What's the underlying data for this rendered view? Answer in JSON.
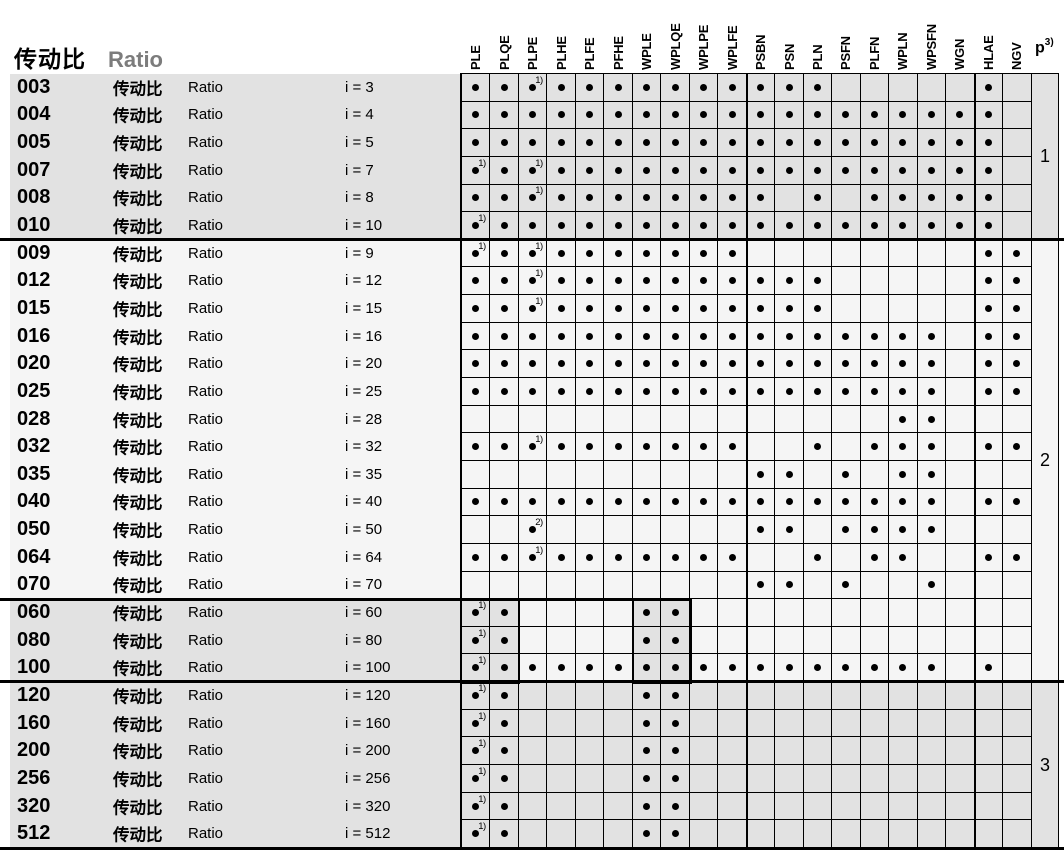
{
  "header": {
    "title_cjk": "传动比",
    "title_en": "Ratio"
  },
  "p_header": {
    "label": "p",
    "sup": "3)"
  },
  "columns": [
    "PLE",
    "PLQE",
    "PLPE",
    "PLHE",
    "PLFE",
    "PFHE",
    "WPLE",
    "WPLQE",
    "WPLPE",
    "WPLFE",
    "PSBN",
    "PSN",
    "PLN",
    "PSFN",
    "PLFN",
    "WPLN",
    "WPSFN",
    "WGN",
    "HLAE",
    "NGV"
  ],
  "sup_map": {
    "d1": "1)",
    "d2": "2)"
  },
  "colors": {
    "row_gray": "#e2e2e2",
    "row_light": "#f5f5f5",
    "border": "#000000",
    "header_en_gray": "#7c7c7c"
  },
  "groups": [
    {
      "label": "1",
      "span": 6,
      "shade": "gray"
    },
    {
      "label": "2",
      "span": 16,
      "shade": "light"
    },
    {
      "label": "3",
      "span": 6,
      "shade": "gray"
    }
  ],
  "highlight_cols": [
    0,
    1,
    6,
    7
  ],
  "rows": [
    {
      "code": "003",
      "cjk": "传动比",
      "en": "Ratio",
      "ratio": "i = 3",
      "label_shade": "gray",
      "cell_shade": "gray",
      "highlight": false,
      "cells": [
        "d",
        "d",
        "d1",
        "d",
        "d",
        "d",
        "d",
        "d",
        "d",
        "d",
        "d",
        "d",
        "d",
        "",
        "",
        "",
        "",
        "",
        "d",
        ""
      ]
    },
    {
      "code": "004",
      "cjk": "传动比",
      "en": "Ratio",
      "ratio": "i = 4",
      "label_shade": "gray",
      "cell_shade": "gray",
      "highlight": false,
      "cells": [
        "d",
        "d",
        "d",
        "d",
        "d",
        "d",
        "d",
        "d",
        "d",
        "d",
        "d",
        "d",
        "d",
        "d",
        "d",
        "d",
        "d",
        "d",
        "d",
        ""
      ]
    },
    {
      "code": "005",
      "cjk": "传动比",
      "en": "Ratio",
      "ratio": "i = 5",
      "label_shade": "gray",
      "cell_shade": "gray",
      "highlight": false,
      "cells": [
        "d",
        "d",
        "d",
        "d",
        "d",
        "d",
        "d",
        "d",
        "d",
        "d",
        "d",
        "d",
        "d",
        "d",
        "d",
        "d",
        "d",
        "d",
        "d",
        ""
      ]
    },
    {
      "code": "007",
      "cjk": "传动比",
      "en": "Ratio",
      "ratio": "i = 7",
      "label_shade": "gray",
      "cell_shade": "gray",
      "highlight": false,
      "cells": [
        "d1",
        "d",
        "d1",
        "d",
        "d",
        "d",
        "d",
        "d",
        "d",
        "d",
        "d",
        "d",
        "d",
        "d",
        "d",
        "d",
        "d",
        "d",
        "d",
        ""
      ]
    },
    {
      "code": "008",
      "cjk": "传动比",
      "en": "Ratio",
      "ratio": "i = 8",
      "label_shade": "gray",
      "cell_shade": "gray",
      "highlight": false,
      "cells": [
        "d",
        "d",
        "d1",
        "d",
        "d",
        "d",
        "d",
        "d",
        "d",
        "d",
        "d",
        "",
        "d",
        "",
        "d",
        "d",
        "d",
        "d",
        "d",
        ""
      ]
    },
    {
      "code": "010",
      "cjk": "传动比",
      "en": "Ratio",
      "ratio": "i = 10",
      "label_shade": "gray",
      "cell_shade": "gray",
      "highlight": false,
      "cells": [
        "d1",
        "d",
        "d",
        "d",
        "d",
        "d",
        "d",
        "d",
        "d",
        "d",
        "d",
        "d",
        "d",
        "d",
        "d",
        "d",
        "d",
        "d",
        "d",
        ""
      ]
    },
    {
      "code": "009",
      "cjk": "传动比",
      "en": "Ratio",
      "ratio": "i = 9",
      "label_shade": "light",
      "cell_shade": "light",
      "highlight": false,
      "cells": [
        "d1",
        "d",
        "d1",
        "d",
        "d",
        "d",
        "d",
        "d",
        "d",
        "d",
        "",
        "",
        "",
        "",
        "",
        "",
        "",
        "",
        "d",
        "d"
      ]
    },
    {
      "code": "012",
      "cjk": "传动比",
      "en": "Ratio",
      "ratio": "i = 12",
      "label_shade": "light",
      "cell_shade": "light",
      "highlight": false,
      "cells": [
        "d",
        "d",
        "d1",
        "d",
        "d",
        "d",
        "d",
        "d",
        "d",
        "d",
        "d",
        "d",
        "d",
        "",
        "",
        "",
        "",
        "",
        "d",
        "d"
      ]
    },
    {
      "code": "015",
      "cjk": "传动比",
      "en": "Ratio",
      "ratio": "i = 15",
      "label_shade": "light",
      "cell_shade": "light",
      "highlight": false,
      "cells": [
        "d",
        "d",
        "d1",
        "d",
        "d",
        "d",
        "d",
        "d",
        "d",
        "d",
        "d",
        "d",
        "d",
        "",
        "",
        "",
        "",
        "",
        "d",
        "d"
      ]
    },
    {
      "code": "016",
      "cjk": "传动比",
      "en": "Ratio",
      "ratio": "i = 16",
      "label_shade": "light",
      "cell_shade": "light",
      "highlight": false,
      "cells": [
        "d",
        "d",
        "d",
        "d",
        "d",
        "d",
        "d",
        "d",
        "d",
        "d",
        "d",
        "d",
        "d",
        "d",
        "d",
        "d",
        "d",
        "",
        "d",
        "d"
      ]
    },
    {
      "code": "020",
      "cjk": "传动比",
      "en": "Ratio",
      "ratio": "i = 20",
      "label_shade": "light",
      "cell_shade": "light",
      "highlight": false,
      "cells": [
        "d",
        "d",
        "d",
        "d",
        "d",
        "d",
        "d",
        "d",
        "d",
        "d",
        "d",
        "d",
        "d",
        "d",
        "d",
        "d",
        "d",
        "",
        "d",
        "d"
      ]
    },
    {
      "code": "025",
      "cjk": "传动比",
      "en": "Ratio",
      "ratio": "i = 25",
      "label_shade": "light",
      "cell_shade": "light",
      "highlight": false,
      "cells": [
        "d",
        "d",
        "d",
        "d",
        "d",
        "d",
        "d",
        "d",
        "d",
        "d",
        "d",
        "d",
        "d",
        "d",
        "d",
        "d",
        "d",
        "",
        "d",
        "d"
      ]
    },
    {
      "code": "028",
      "cjk": "传动比",
      "en": "Ratio",
      "ratio": "i = 28",
      "label_shade": "light",
      "cell_shade": "light",
      "highlight": false,
      "cells": [
        "",
        "",
        "",
        "",
        "",
        "",
        "",
        "",
        "",
        "",
        "",
        "",
        "",
        "",
        "",
        "d",
        "d",
        "",
        "",
        ""
      ]
    },
    {
      "code": "032",
      "cjk": "传动比",
      "en": "Ratio",
      "ratio": "i = 32",
      "label_shade": "light",
      "cell_shade": "light",
      "highlight": false,
      "cells": [
        "d",
        "d",
        "d1",
        "d",
        "d",
        "d",
        "d",
        "d",
        "d",
        "d",
        "",
        "",
        "d",
        "",
        "d",
        "d",
        "d",
        "",
        "d",
        "d"
      ]
    },
    {
      "code": "035",
      "cjk": "传动比",
      "en": "Ratio",
      "ratio": "i = 35",
      "label_shade": "light",
      "cell_shade": "light",
      "highlight": false,
      "cells": [
        "",
        "",
        "",
        "",
        "",
        "",
        "",
        "",
        "",
        "",
        "d",
        "d",
        "",
        "d",
        "",
        "d",
        "d",
        "",
        "",
        ""
      ]
    },
    {
      "code": "040",
      "cjk": "传动比",
      "en": "Ratio",
      "ratio": "i = 40",
      "label_shade": "light",
      "cell_shade": "light",
      "highlight": false,
      "cells": [
        "d",
        "d",
        "d",
        "d",
        "d",
        "d",
        "d",
        "d",
        "d",
        "d",
        "d",
        "d",
        "d",
        "d",
        "d",
        "d",
        "d",
        "",
        "d",
        "d"
      ]
    },
    {
      "code": "050",
      "cjk": "传动比",
      "en": "Ratio",
      "ratio": "i = 50",
      "label_shade": "light",
      "cell_shade": "light",
      "highlight": false,
      "cells": [
        "",
        "",
        "d2",
        "",
        "",
        "",
        "",
        "",
        "",
        "",
        "d",
        "d",
        "",
        "d",
        "d",
        "d",
        "d",
        "",
        "",
        ""
      ]
    },
    {
      "code": "064",
      "cjk": "传动比",
      "en": "Ratio",
      "ratio": "i = 64",
      "label_shade": "light",
      "cell_shade": "light",
      "highlight": false,
      "cells": [
        "d",
        "d",
        "d1",
        "d",
        "d",
        "d",
        "d",
        "d",
        "d",
        "d",
        "",
        "",
        "d",
        "",
        "d",
        "d",
        "",
        "",
        "d",
        "d"
      ]
    },
    {
      "code": "070",
      "cjk": "传动比",
      "en": "Ratio",
      "ratio": "i = 70",
      "label_shade": "light",
      "cell_shade": "light",
      "highlight": false,
      "cells": [
        "",
        "",
        "",
        "",
        "",
        "",
        "",
        "",
        "",
        "",
        "d",
        "d",
        "",
        "d",
        "",
        "",
        "d",
        "",
        "",
        ""
      ]
    },
    {
      "code": "060",
      "cjk": "传动比",
      "en": "Ratio",
      "ratio": "i = 60",
      "label_shade": "gray",
      "cell_shade": "light",
      "highlight": true,
      "cells": [
        "d1",
        "d",
        "",
        "",
        "",
        "",
        "d",
        "d",
        "",
        "",
        "",
        "",
        "",
        "",
        "",
        "",
        "",
        "",
        "",
        ""
      ]
    },
    {
      "code": "080",
      "cjk": "传动比",
      "en": "Ratio",
      "ratio": "i = 80",
      "label_shade": "gray",
      "cell_shade": "light",
      "highlight": true,
      "cells": [
        "d1",
        "d",
        "",
        "",
        "",
        "",
        "d",
        "d",
        "",
        "",
        "",
        "",
        "",
        "",
        "",
        "",
        "",
        "",
        "",
        ""
      ]
    },
    {
      "code": "100",
      "cjk": "传动比",
      "en": "Ratio",
      "ratio": "i = 100",
      "label_shade": "gray",
      "cell_shade": "light",
      "highlight": true,
      "cells": [
        "d1",
        "d",
        "d",
        "d",
        "d",
        "d",
        "d",
        "d",
        "d",
        "d",
        "d",
        "d",
        "d",
        "d",
        "d",
        "d",
        "d",
        "",
        "d",
        ""
      ]
    },
    {
      "code": "120",
      "cjk": "传动比",
      "en": "Ratio",
      "ratio": "i = 120",
      "label_shade": "gray",
      "cell_shade": "gray",
      "highlight": false,
      "cells": [
        "d1",
        "d",
        "",
        "",
        "",
        "",
        "d",
        "d",
        "",
        "",
        "",
        "",
        "",
        "",
        "",
        "",
        "",
        "",
        "",
        ""
      ]
    },
    {
      "code": "160",
      "cjk": "传动比",
      "en": "Ratio",
      "ratio": "i = 160",
      "label_shade": "gray",
      "cell_shade": "gray",
      "highlight": false,
      "cells": [
        "d1",
        "d",
        "",
        "",
        "",
        "",
        "d",
        "d",
        "",
        "",
        "",
        "",
        "",
        "",
        "",
        "",
        "",
        "",
        "",
        ""
      ]
    },
    {
      "code": "200",
      "cjk": "传动比",
      "en": "Ratio",
      "ratio": "i = 200",
      "label_shade": "gray",
      "cell_shade": "gray",
      "highlight": false,
      "cells": [
        "d1",
        "d",
        "",
        "",
        "",
        "",
        "d",
        "d",
        "",
        "",
        "",
        "",
        "",
        "",
        "",
        "",
        "",
        "",
        "",
        ""
      ]
    },
    {
      "code": "256",
      "cjk": "传动比",
      "en": "Ratio",
      "ratio": "i = 256",
      "label_shade": "gray",
      "cell_shade": "gray",
      "highlight": false,
      "cells": [
        "d1",
        "d",
        "",
        "",
        "",
        "",
        "d",
        "d",
        "",
        "",
        "",
        "",
        "",
        "",
        "",
        "",
        "",
        "",
        "",
        ""
      ]
    },
    {
      "code": "320",
      "cjk": "传动比",
      "en": "Ratio",
      "ratio": "i = 320",
      "label_shade": "gray",
      "cell_shade": "gray",
      "highlight": false,
      "cells": [
        "d1",
        "d",
        "",
        "",
        "",
        "",
        "d",
        "d",
        "",
        "",
        "",
        "",
        "",
        "",
        "",
        "",
        "",
        "",
        "",
        ""
      ]
    },
    {
      "code": "512",
      "cjk": "传动比",
      "en": "Ratio",
      "ratio": "i = 512",
      "label_shade": "gray",
      "cell_shade": "gray",
      "highlight": false,
      "cells": [
        "d1",
        "d",
        "",
        "",
        "",
        "",
        "d",
        "d",
        "",
        "",
        "",
        "",
        "",
        "",
        "",
        "",
        "",
        "",
        "",
        ""
      ]
    }
  ]
}
